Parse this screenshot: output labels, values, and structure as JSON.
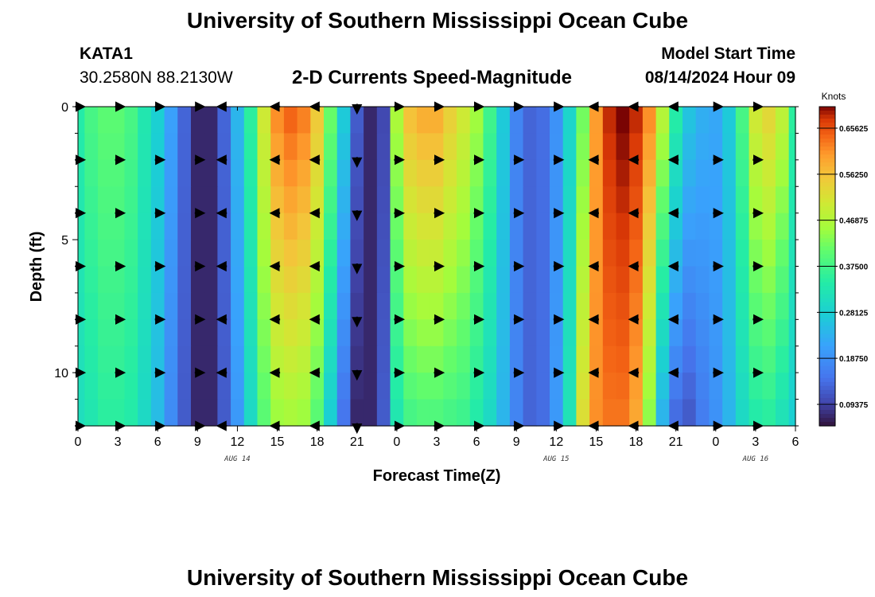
{
  "header": {
    "title": "University of Southern Mississippi Ocean Cube",
    "station_id": "KATA1",
    "station_coords": "30.2580N  88.2130W",
    "subtitle": "2-D Currents Speed-Magnitude",
    "model_label": "Model Start Time",
    "model_time": "08/14/2024 Hour 09"
  },
  "footer": {
    "title": "University of Southern Mississippi Ocean Cube"
  },
  "chart_data": {
    "type": "heatmap",
    "title": "2-D Currents Speed-Magnitude",
    "xlabel": "Forecast Time(Z)",
    "ylabel": "Depth (ft)",
    "x_range_hours": [
      0,
      54
    ],
    "y_range_ft": [
      0,
      12
    ],
    "x_tick_labels": [
      "0",
      "3",
      "6",
      "9",
      "12",
      "15",
      "18",
      "21",
      "0",
      "3",
      "6",
      "9",
      "12",
      "15",
      "18",
      "21",
      "0",
      "3",
      "6"
    ],
    "y_tick_labels": [
      "0",
      "5",
      "10"
    ],
    "y_tick_values": [
      0,
      5,
      10
    ],
    "date_labels": [
      {
        "text": "AUG 14",
        "hour": 12
      },
      {
        "text": "AUG 15",
        "hour": 36
      },
      {
        "text": "AUG 16",
        "hour": 51
      }
    ],
    "colorbar": {
      "label": "Knots",
      "range": [
        0.05,
        0.7
      ],
      "tick_labels": [
        "0.65625",
        "0.56250",
        "0.46875",
        "0.37500",
        "0.28125",
        "0.18750",
        "0.09375"
      ],
      "tick_values": [
        0.65625,
        0.5625,
        0.46875,
        0.375,
        0.28125,
        0.1875,
        0.09375
      ]
    },
    "speed_profile_hours": [
      0,
      1,
      2,
      3,
      4,
      5,
      6,
      7,
      8,
      9,
      10,
      11,
      12,
      13,
      14,
      15,
      16,
      17,
      18,
      19,
      20,
      21,
      22,
      23,
      24,
      25,
      26,
      27,
      28,
      29,
      30,
      31,
      32,
      33,
      34,
      35,
      36,
      37,
      38,
      39,
      40,
      41,
      42,
      43,
      44,
      45,
      46,
      47,
      48,
      49,
      50,
      51,
      52,
      53,
      54
    ],
    "speed_profile_surface_knots": [
      0.34,
      0.38,
      0.4,
      0.4,
      0.38,
      0.33,
      0.28,
      0.21,
      0.13,
      0.07,
      0.07,
      0.13,
      0.24,
      0.35,
      0.5,
      0.61,
      0.64,
      0.62,
      0.55,
      0.41,
      0.27,
      0.12,
      0.07,
      0.1,
      0.46,
      0.56,
      0.58,
      0.58,
      0.54,
      0.5,
      0.45,
      0.37,
      0.27,
      0.17,
      0.13,
      0.14,
      0.19,
      0.29,
      0.42,
      0.6,
      0.68,
      0.7,
      0.68,
      0.61,
      0.47,
      0.34,
      0.26,
      0.23,
      0.22,
      0.27,
      0.38,
      0.5,
      0.53,
      0.48,
      0.35
    ],
    "speed_profile_bottom_knots": [
      0.31,
      0.33,
      0.35,
      0.35,
      0.34,
      0.3,
      0.25,
      0.18,
      0.12,
      0.07,
      0.07,
      0.12,
      0.2,
      0.3,
      0.4,
      0.45,
      0.46,
      0.45,
      0.4,
      0.28,
      0.15,
      0.07,
      0.07,
      0.12,
      0.33,
      0.38,
      0.39,
      0.39,
      0.38,
      0.37,
      0.34,
      0.3,
      0.24,
      0.17,
      0.13,
      0.14,
      0.2,
      0.32,
      0.52,
      0.61,
      0.63,
      0.63,
      0.59,
      0.44,
      0.24,
      0.14,
      0.12,
      0.16,
      0.19,
      0.24,
      0.3,
      0.34,
      0.35,
      0.32,
      0.28
    ],
    "vector_hours": [
      0,
      3,
      6,
      9,
      11,
      15,
      18,
      21,
      24,
      27,
      30,
      33,
      36,
      39,
      42,
      45,
      48,
      51
    ],
    "vector_depths_ft": [
      0,
      2,
      4,
      6,
      8,
      10,
      12
    ],
    "vector_directions": [
      "east",
      "east",
      "east",
      "east",
      "west",
      "west",
      "west",
      "south",
      "east",
      "east",
      "east",
      "east",
      "east",
      "west",
      "west",
      "west",
      "east",
      "east"
    ]
  }
}
